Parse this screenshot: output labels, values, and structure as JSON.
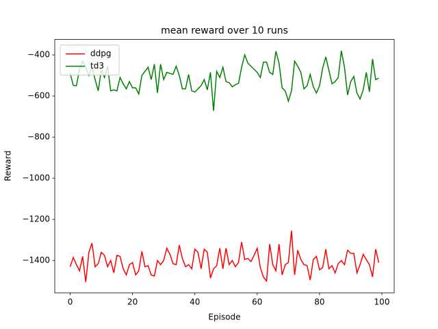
{
  "chart_data": {
    "type": "line",
    "title": "mean reward over 10 runs",
    "xlabel": "Episode",
    "ylabel": "Reward",
    "x": [
      0,
      1,
      2,
      3,
      4,
      5,
      6,
      7,
      8,
      9,
      10,
      11,
      12,
      13,
      14,
      15,
      16,
      17,
      18,
      19,
      20,
      21,
      22,
      23,
      24,
      25,
      26,
      27,
      28,
      29,
      30,
      31,
      32,
      33,
      34,
      35,
      36,
      37,
      38,
      39,
      40,
      41,
      42,
      43,
      44,
      45,
      46,
      47,
      48,
      49,
      50,
      51,
      52,
      53,
      54,
      55,
      56,
      57,
      58,
      59,
      60,
      61,
      62,
      63,
      64,
      65,
      66,
      67,
      68,
      69,
      70,
      71,
      72,
      73,
      74,
      75,
      76,
      77,
      78,
      79,
      80,
      81,
      82,
      83,
      84,
      85,
      86,
      87,
      88,
      89,
      90,
      91,
      92,
      93,
      94,
      95,
      96,
      97,
      98,
      99
    ],
    "series": [
      {
        "name": "ddpg",
        "color": "#ff0000",
        "values": [
          -1430,
          -1385,
          -1420,
          -1450,
          -1380,
          -1505,
          -1360,
          -1315,
          -1430,
          -1415,
          -1360,
          -1375,
          -1430,
          -1400,
          -1460,
          -1375,
          -1380,
          -1440,
          -1470,
          -1420,
          -1410,
          -1470,
          -1450,
          -1355,
          -1430,
          -1425,
          -1470,
          -1475,
          -1400,
          -1420,
          -1400,
          -1340,
          -1370,
          -1415,
          -1420,
          -1325,
          -1390,
          -1430,
          -1420,
          -1440,
          -1345,
          -1360,
          -1440,
          -1345,
          -1360,
          -1485,
          -1440,
          -1425,
          -1340,
          -1440,
          -1340,
          -1420,
          -1400,
          -1430,
          -1410,
          -1310,
          -1395,
          -1390,
          -1405,
          -1375,
          -1340,
          -1435,
          -1480,
          -1500,
          -1320,
          -1420,
          -1450,
          -1320,
          -1470,
          -1420,
          -1410,
          -1255,
          -1470,
          -1350,
          -1395,
          -1420,
          -1425,
          -1495,
          -1395,
          -1380,
          -1445,
          -1435,
          -1345,
          -1440,
          -1425,
          -1460,
          -1415,
          -1400,
          -1420,
          -1350,
          -1365,
          -1365,
          -1460,
          -1420,
          -1370,
          -1395,
          -1420,
          -1480,
          -1345,
          -1410
        ]
      },
      {
        "name": "td3",
        "color": "#008000",
        "values": [
          -490,
          -548,
          -550,
          -470,
          -430,
          -460,
          -500,
          -460,
          -520,
          -575,
          -470,
          -510,
          -455,
          -575,
          -570,
          -575,
          -510,
          -540,
          -565,
          -530,
          -560,
          -560,
          -590,
          -500,
          -480,
          -460,
          -520,
          -445,
          -585,
          -445,
          -520,
          -485,
          -490,
          -495,
          -455,
          -500,
          -565,
          -565,
          -495,
          -575,
          -580,
          -565,
          -550,
          -520,
          -570,
          -485,
          -672,
          -480,
          -510,
          -460,
          -530,
          -535,
          -555,
          -545,
          -538,
          -460,
          -400,
          -440,
          -455,
          -470,
          -485,
          -510,
          -435,
          -435,
          -485,
          -495,
          -382,
          -440,
          -560,
          -575,
          -625,
          -575,
          -430,
          -455,
          -485,
          -565,
          -550,
          -495,
          -555,
          -585,
          -550,
          -465,
          -410,
          -475,
          -540,
          -530,
          -510,
          -380,
          -460,
          -595,
          -530,
          -505,
          -585,
          -615,
          -570,
          -485,
          -580,
          -420,
          -520,
          -513
        ]
      }
    ],
    "xlim": [
      -4.95,
      103.95
    ],
    "ylim": [
      -1557,
      -325
    ],
    "xticks": [
      0,
      20,
      40,
      60,
      80,
      100
    ],
    "yticks": [
      {
        "value": -1400,
        "label": "−1400"
      },
      {
        "value": -1200,
        "label": "−1200"
      },
      {
        "value": -1000,
        "label": "−1000"
      },
      {
        "value": -800,
        "label": "−800"
      },
      {
        "value": -600,
        "label": "−600"
      },
      {
        "value": -400,
        "label": "−400"
      }
    ],
    "grid": false,
    "legend": "upper left"
  }
}
